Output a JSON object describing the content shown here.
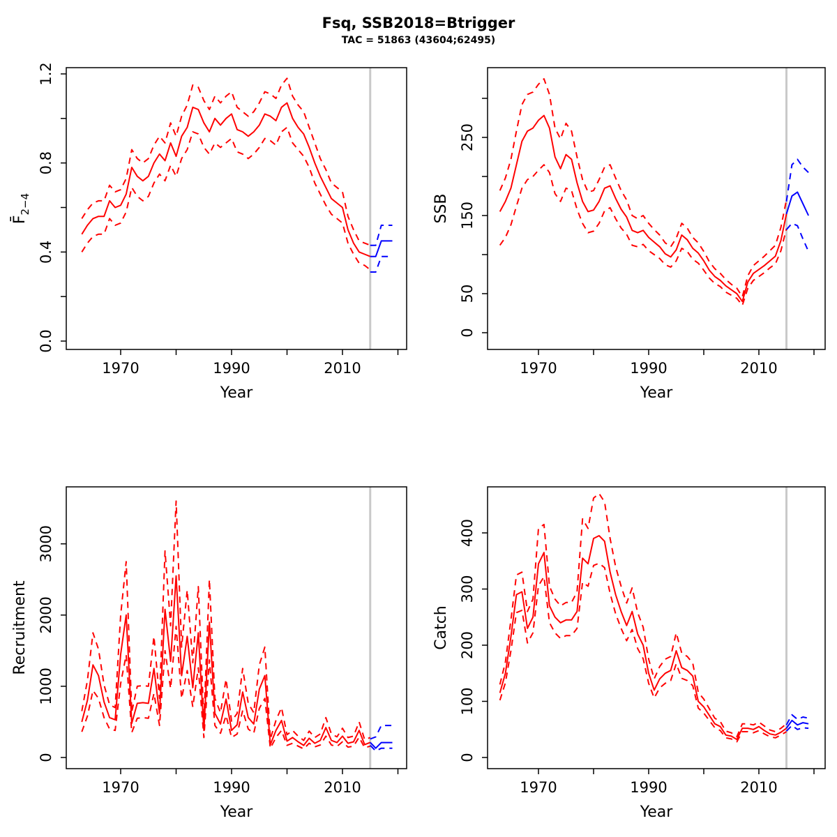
{
  "title": "Fsq, SSB2018=Btrigger",
  "subtitle": "TAC = 51863 (43604;62495)",
  "colors": {
    "history": "#FF0000",
    "forecast": "#0000FF",
    "divider": "#C9C9C9",
    "axis": "#000000",
    "background": "#FFFFFF"
  },
  "chart_data": [
    {
      "type": "line",
      "id": "f",
      "ylabel": "F2-4",
      "ylabel_main": "F̄",
      "ylabel_sub": "2−4",
      "xlabel": "Year",
      "legend": "none",
      "grid": false,
      "history_start_year": 1963,
      "divider_year": 2015,
      "xlim": [
        1963,
        2019
      ],
      "ylim": [
        0,
        1.2
      ],
      "xticks": [
        1970,
        1980,
        1990,
        2000,
        2010,
        2020
      ],
      "xtick_labels": [
        {
          "v": 1970,
          "t": "1970"
        },
        {
          "v": 1990,
          "t": "1990"
        },
        {
          "v": 2010,
          "t": "2010"
        }
      ],
      "yticks": [
        0,
        0.2,
        0.4,
        0.6,
        0.8,
        1.0,
        1.2
      ],
      "ytick_labels": [
        {
          "v": 0,
          "t": "0.0"
        },
        {
          "v": 0.4,
          "t": "0.4"
        },
        {
          "v": 0.8,
          "t": "0.8"
        },
        {
          "v": 1.2,
          "t": "1.2"
        }
      ],
      "history": {
        "median": [
          0.48,
          0.52,
          0.55,
          0.56,
          0.56,
          0.63,
          0.6,
          0.61,
          0.66,
          0.78,
          0.74,
          0.72,
          0.74,
          0.8,
          0.84,
          0.81,
          0.89,
          0.83,
          0.92,
          0.96,
          1.05,
          1.04,
          0.98,
          0.94,
          1.0,
          0.97,
          1.0,
          1.02,
          0.95,
          0.94,
          0.92,
          0.94,
          0.97,
          1.02,
          1.01,
          0.99,
          1.05,
          1.07,
          1.0,
          0.96,
          0.93,
          0.87,
          0.8,
          0.74,
          0.69,
          0.64,
          0.62,
          0.6,
          0.5,
          0.44,
          0.4,
          0.39,
          0.38
        ],
        "upper": [
          0.55,
          0.59,
          0.62,
          0.63,
          0.63,
          0.7,
          0.67,
          0.68,
          0.73,
          0.86,
          0.82,
          0.8,
          0.82,
          0.88,
          0.92,
          0.89,
          0.98,
          0.92,
          1.01,
          1.06,
          1.15,
          1.14,
          1.08,
          1.04,
          1.1,
          1.07,
          1.1,
          1.12,
          1.05,
          1.03,
          1.01,
          1.03,
          1.07,
          1.12,
          1.11,
          1.09,
          1.15,
          1.18,
          1.1,
          1.06,
          1.03,
          0.96,
          0.89,
          0.82,
          0.77,
          0.71,
          0.69,
          0.67,
          0.56,
          0.5,
          0.45,
          0.44,
          0.43
        ],
        "lower": [
          0.4,
          0.44,
          0.47,
          0.48,
          0.48,
          0.55,
          0.52,
          0.53,
          0.58,
          0.69,
          0.65,
          0.63,
          0.65,
          0.71,
          0.75,
          0.72,
          0.79,
          0.74,
          0.82,
          0.86,
          0.94,
          0.93,
          0.87,
          0.84,
          0.89,
          0.87,
          0.89,
          0.91,
          0.85,
          0.84,
          0.82,
          0.84,
          0.87,
          0.91,
          0.9,
          0.88,
          0.94,
          0.96,
          0.89,
          0.86,
          0.83,
          0.78,
          0.71,
          0.66,
          0.61,
          0.57,
          0.55,
          0.53,
          0.44,
          0.39,
          0.35,
          0.34,
          0.32
        ]
      },
      "forecast": {
        "years": [
          2015,
          2016,
          2017,
          2018,
          2019
        ],
        "median": [
          0.38,
          0.38,
          0.45,
          0.45,
          0.45
        ],
        "upper": [
          0.43,
          0.43,
          0.52,
          0.52,
          0.52
        ],
        "lower": [
          0.31,
          0.31,
          0.38,
          0.38,
          0.38
        ]
      }
    },
    {
      "type": "line",
      "id": "ssb",
      "ylabel": "SSB",
      "xlabel": "Year",
      "legend": "none",
      "grid": false,
      "history_start_year": 1963,
      "divider_year": 2015,
      "xlim": [
        1963,
        2019
      ],
      "ylim": [
        0,
        325
      ],
      "xticks": [
        1970,
        1980,
        1990,
        2000,
        2010,
        2020
      ],
      "xtick_labels": [
        {
          "v": 1970,
          "t": "1970"
        },
        {
          "v": 1990,
          "t": "1990"
        },
        {
          "v": 2010,
          "t": "2010"
        }
      ],
      "yticks": [
        0,
        50,
        100,
        150,
        200,
        250,
        300
      ],
      "ytick_labels": [
        {
          "v": 0,
          "t": "0"
        },
        {
          "v": 50,
          "t": "50"
        },
        {
          "v": 150,
          "t": "150"
        },
        {
          "v": 250,
          "t": "250"
        }
      ],
      "history": {
        "median": [
          155,
          168,
          185,
          215,
          245,
          258,
          262,
          272,
          278,
          262,
          225,
          210,
          228,
          222,
          192,
          168,
          155,
          157,
          168,
          185,
          188,
          172,
          158,
          148,
          131,
          128,
          131,
          122,
          116,
          110,
          101,
          97,
          106,
          125,
          119,
          108,
          102,
          92,
          80,
          72,
          67,
          60,
          55,
          50,
          40,
          65,
          76,
          81,
          86,
          92,
          98,
          118,
          152
        ],
        "upper": [
          182,
          198,
          222,
          258,
          292,
          305,
          308,
          318,
          325,
          305,
          262,
          248,
          268,
          258,
          225,
          196,
          180,
          182,
          196,
          212,
          215,
          198,
          182,
          170,
          150,
          146,
          150,
          140,
          132,
          125,
          115,
          110,
          121,
          140,
          134,
          122,
          115,
          104,
          91,
          82,
          76,
          68,
          62,
          57,
          46,
          73,
          86,
          92,
          98,
          105,
          112,
          135,
          170
        ],
        "lower": [
          112,
          122,
          138,
          162,
          185,
          196,
          200,
          208,
          215,
          205,
          178,
          168,
          185,
          182,
          158,
          140,
          128,
          130,
          140,
          156,
          160,
          146,
          134,
          126,
          112,
          110,
          113,
          105,
          100,
          95,
          87,
          84,
          92,
          108,
          104,
          94,
          89,
          80,
          70,
          63,
          59,
          52,
          48,
          44,
          35,
          57,
          67,
          72,
          77,
          83,
          88,
          105,
          133
        ]
      },
      "forecast": {
        "years": [
          2015,
          2016,
          2017,
          2018,
          2019
        ],
        "median": [
          152,
          175,
          180,
          165,
          150
        ],
        "upper": [
          168,
          215,
          222,
          212,
          205
        ],
        "lower": [
          132,
          140,
          137,
          120,
          104
        ]
      }
    },
    {
      "type": "line",
      "id": "recruitment",
      "ylabel": "Recruitment",
      "xlabel": "Year",
      "legend": "none",
      "grid": false,
      "history_start_year": 1963,
      "divider_year": 2015,
      "xlim": [
        1963,
        2019
      ],
      "ylim": [
        0,
        3700
      ],
      "xticks": [
        1970,
        1980,
        1990,
        2000,
        2010,
        2020
      ],
      "xtick_labels": [
        {
          "v": 1970,
          "t": "1970"
        },
        {
          "v": 1990,
          "t": "1990"
        },
        {
          "v": 2010,
          "t": "2010"
        }
      ],
      "yticks": [
        0,
        1000,
        2000,
        3000
      ],
      "ytick_labels": [
        {
          "v": 0,
          "t": "0"
        },
        {
          "v": 1000,
          "t": "1000"
        },
        {
          "v": 2000,
          "t": "2000"
        },
        {
          "v": 3000,
          "t": "3000"
        }
      ],
      "history": {
        "median": [
          500,
          800,
          1300,
          1150,
          780,
          560,
          530,
          1450,
          2000,
          480,
          760,
          770,
          760,
          1250,
          620,
          2080,
          1350,
          2550,
          1150,
          1700,
          980,
          1750,
          380,
          1900,
          620,
          470,
          820,
          380,
          460,
          920,
          560,
          470,
          960,
          1150,
          180,
          380,
          520,
          230,
          280,
          220,
          170,
          270,
          200,
          240,
          420,
          240,
          210,
          300,
          200,
          220,
          380,
          180,
          212
        ],
        "upper": [
          650,
          1080,
          1750,
          1520,
          1020,
          740,
          700,
          2000,
          2750,
          640,
          1000,
          1010,
          1000,
          1700,
          830,
          2900,
          1850,
          3600,
          1550,
          2350,
          1330,
          2400,
          520,
          2500,
          830,
          630,
          1100,
          510,
          620,
          1250,
          760,
          630,
          1300,
          1550,
          260,
          520,
          700,
          320,
          380,
          300,
          240,
          370,
          280,
          330,
          560,
          330,
          290,
          410,
          280,
          300,
          500,
          250,
          280
        ],
        "lower": [
          360,
          580,
          940,
          830,
          560,
          400,
          380,
          1040,
          1440,
          350,
          550,
          560,
          550,
          900,
          450,
          1500,
          970,
          1840,
          830,
          1220,
          710,
          1260,
          280,
          1370,
          450,
          340,
          590,
          280,
          330,
          660,
          400,
          340,
          690,
          830,
          130,
          280,
          380,
          170,
          200,
          160,
          120,
          200,
          150,
          175,
          300,
          175,
          155,
          220,
          145,
          160,
          285,
          135,
          160
        ]
      },
      "forecast": {
        "years": [
          2015,
          2016,
          2017,
          2018,
          2019
        ],
        "median": [
          212,
          130,
          210,
          210,
          210
        ],
        "upper": [
          260,
          290,
          450,
          450,
          450
        ],
        "lower": [
          170,
          90,
          130,
          130,
          130
        ]
      }
    },
    {
      "type": "line",
      "id": "catch",
      "ylabel": "Catch",
      "xlabel": "Year",
      "legend": "none",
      "grid": false,
      "history_start_year": 1963,
      "divider_year": 2015,
      "xlim": [
        1963,
        2019
      ],
      "ylim": [
        0,
        480
      ],
      "xticks": [
        1970,
        1980,
        1990,
        2000,
        2010,
        2020
      ],
      "xtick_labels": [
        {
          "v": 1970,
          "t": "1970"
        },
        {
          "v": 1990,
          "t": "1990"
        },
        {
          "v": 2010,
          "t": "2010"
        }
      ],
      "yticks": [
        0,
        100,
        200,
        300,
        400
      ],
      "ytick_labels": [
        {
          "v": 0,
          "t": "0"
        },
        {
          "v": 100,
          "t": "100"
        },
        {
          "v": 200,
          "t": "200"
        },
        {
          "v": 300,
          "t": "300"
        },
        {
          "v": 400,
          "t": "400"
        }
      ],
      "history": {
        "median": [
          115,
          150,
          215,
          290,
          295,
          230,
          250,
          345,
          365,
          270,
          250,
          240,
          245,
          245,
          260,
          355,
          345,
          390,
          395,
          385,
          330,
          290,
          260,
          235,
          260,
          220,
          200,
          150,
          120,
          140,
          150,
          155,
          190,
          160,
          155,
          145,
          100,
          90,
          75,
          60,
          55,
          40,
          38,
          32,
          52,
          52,
          50,
          55,
          48,
          42,
          40,
          45,
          52
        ],
        "upper": [
          130,
          170,
          245,
          325,
          330,
          260,
          282,
          408,
          415,
          305,
          282,
          270,
          276,
          276,
          295,
          425,
          408,
          462,
          470,
          455,
          390,
          340,
          305,
          275,
          302,
          258,
          232,
          175,
          140,
          162,
          175,
          180,
          222,
          186,
          180,
          168,
          116,
          104,
          87,
          70,
          64,
          47,
          44,
          37,
          60,
          60,
          58,
          63,
          56,
          49,
          46,
          52,
          60
        ],
        "lower": [
          102,
          133,
          190,
          258,
          262,
          204,
          222,
          306,
          322,
          240,
          222,
          212,
          217,
          217,
          230,
          312,
          305,
          342,
          346,
          338,
          292,
          256,
          230,
          208,
          228,
          194,
          176,
          132,
          106,
          124,
          132,
          137,
          167,
          141,
          137,
          128,
          88,
          79,
          66,
          53,
          48,
          35,
          33,
          28,
          46,
          46,
          44,
          48,
          42,
          37,
          35,
          40,
          46
        ]
      },
      "forecast": {
        "years": [
          2015,
          2016,
          2017,
          2018,
          2019
        ],
        "median": [
          52,
          66,
          58,
          62,
          60
        ],
        "upper": [
          58,
          76,
          68,
          72,
          70
        ],
        "lower": [
          47,
          57,
          50,
          53,
          52
        ]
      }
    }
  ]
}
